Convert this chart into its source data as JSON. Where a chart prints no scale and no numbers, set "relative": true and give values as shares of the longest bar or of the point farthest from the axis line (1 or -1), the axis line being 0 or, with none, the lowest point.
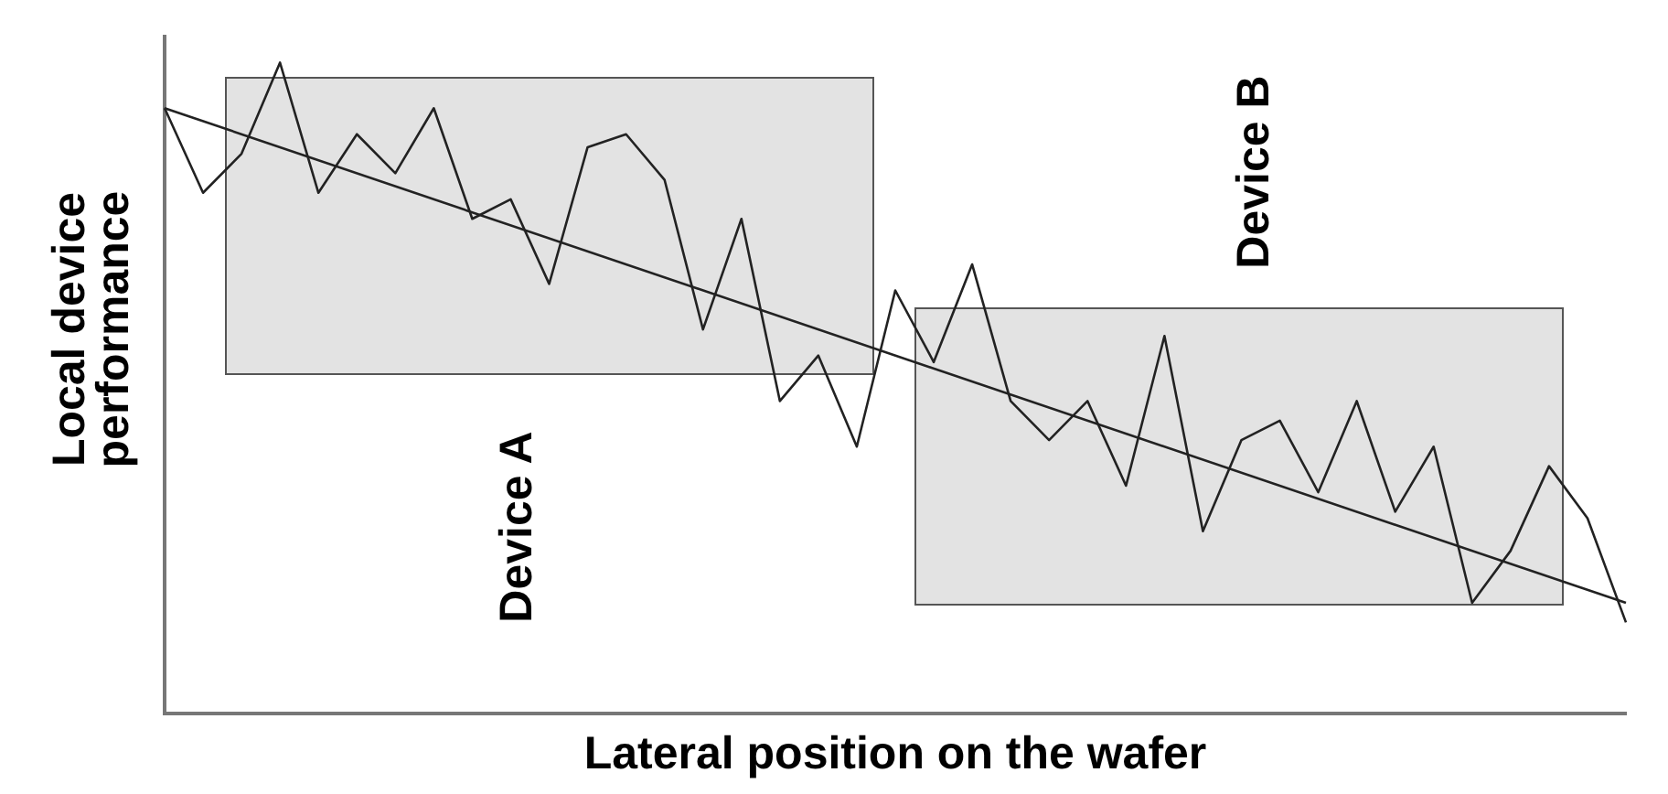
{
  "chart_data": {
    "type": "line",
    "relative": true,
    "xlabel": "Lateral position on the wafer",
    "ylabel": "Local device performance",
    "categories": [
      null,
      null,
      null,
      null,
      null,
      null,
      null,
      null,
      null,
      null,
      null,
      null,
      null,
      null,
      null,
      null,
      null,
      null,
      null,
      null,
      null,
      null,
      null,
      null,
      null,
      null,
      null,
      null,
      null,
      null,
      null,
      null,
      null,
      null,
      null,
      null,
      null,
      null,
      null
    ],
    "series": [
      {
        "color": "#222222",
        "values": [
          0.93,
          0.8,
          0.86,
          1,
          0.8,
          0.89,
          0.83,
          0.93,
          0.76,
          0.79,
          0.66,
          0.87,
          0.89,
          0.82,
          0.59,
          0.76,
          0.48,
          0.55,
          0.41,
          0.65,
          0.54,
          0.69,
          0.48,
          0.42,
          0.48,
          0.35,
          0.58,
          0.28,
          0.42,
          0.45,
          0.34,
          0.48,
          0.31,
          0.41,
          0.17,
          0.25,
          0.38,
          0.3,
          0.14
        ]
      },
      {
        "color": "#222222",
        "values": [
          0.93,
          null,
          null,
          null,
          null,
          null,
          null,
          null,
          null,
          null,
          null,
          null,
          null,
          null,
          null,
          null,
          null,
          null,
          null,
          null,
          null,
          null,
          null,
          null,
          null,
          null,
          null,
          null,
          null,
          null,
          null,
          null,
          null,
          null,
          null,
          null,
          null,
          null,
          0.17
        ]
      }
    ],
    "annotations": [
      "Device A",
      "Device B"
    ],
    "grid": false,
    "legend": false,
    "marker": "none",
    "line_style": "solid"
  }
}
